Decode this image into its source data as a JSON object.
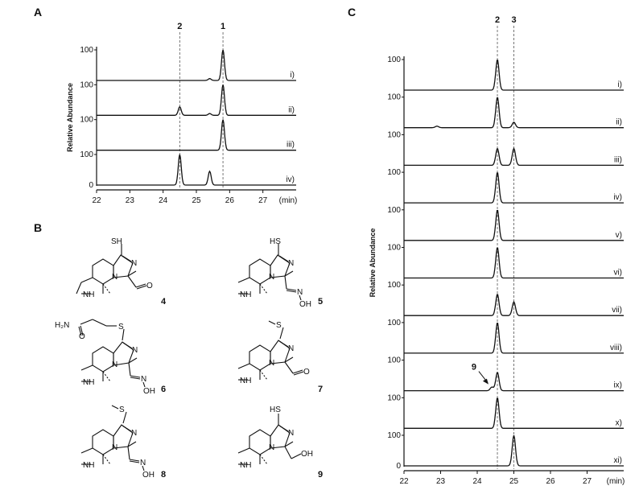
{
  "panels": {
    "a": "A",
    "b": "B",
    "c": "C"
  },
  "x_unit": "(min)",
  "chart_data": [
    {
      "panel": "A",
      "type": "line",
      "xlim": [
        22,
        28
      ],
      "x_ticks": [
        "22",
        "23",
        "24",
        "25",
        "26",
        "27"
      ],
      "ylabel": "Relative Abundance",
      "y_tick_top": "100",
      "y_tick_bottom": "0",
      "peak_markers": [
        {
          "label": "1",
          "x": 25.8
        },
        {
          "label": "2",
          "x": 24.5
        }
      ],
      "series": [
        {
          "label": "i)",
          "peaks": [
            {
              "x": 25.8,
              "height": 100
            },
            {
              "x": 25.4,
              "height": 6
            }
          ]
        },
        {
          "label": "ii)",
          "peaks": [
            {
              "x": 24.5,
              "height": 28
            },
            {
              "x": 25.4,
              "height": 6
            },
            {
              "x": 25.8,
              "height": 100
            }
          ]
        },
        {
          "label": "iii)",
          "peaks": [
            {
              "x": 25.8,
              "height": 100
            }
          ]
        },
        {
          "label": "iv)",
          "peaks": [
            {
              "x": 24.5,
              "height": 100
            },
            {
              "x": 25.4,
              "height": 45
            }
          ]
        }
      ]
    },
    {
      "panel": "C",
      "type": "line",
      "xlim": [
        22,
        28
      ],
      "x_ticks": [
        "22",
        "23",
        "24",
        "25",
        "26",
        "27"
      ],
      "ylabel": "Relative Abundance",
      "y_tick_top": "100",
      "y_tick_bottom": "0",
      "peak_markers": [
        {
          "label": "2",
          "x": 24.55
        },
        {
          "label": "3",
          "x": 25.0
        }
      ],
      "annotation": {
        "label": "9",
        "x": 24.35
      },
      "series": [
        {
          "label": "i)",
          "peaks": [
            {
              "x": 24.55,
              "height": 100
            }
          ]
        },
        {
          "label": "ii)",
          "peaks": [
            {
              "x": 24.55,
              "height": 100
            },
            {
              "x": 25.0,
              "height": 18
            },
            {
              "x": 22.9,
              "height": 5
            }
          ]
        },
        {
          "label": "iii)",
          "peaks": [
            {
              "x": 24.55,
              "height": 55
            },
            {
              "x": 25.0,
              "height": 55
            }
          ]
        },
        {
          "label": "iv)",
          "peaks": [
            {
              "x": 24.55,
              "height": 100
            }
          ]
        },
        {
          "label": "v)",
          "peaks": [
            {
              "x": 24.55,
              "height": 100
            }
          ]
        },
        {
          "label": "vi)",
          "peaks": [
            {
              "x": 24.55,
              "height": 100
            }
          ]
        },
        {
          "label": "vii)",
          "peaks": [
            {
              "x": 24.55,
              "height": 70
            },
            {
              "x": 25.0,
              "height": 45
            }
          ]
        },
        {
          "label": "viii)",
          "peaks": [
            {
              "x": 24.55,
              "height": 100
            }
          ]
        },
        {
          "label": "ix)",
          "peaks": [
            {
              "x": 24.4,
              "height": 12
            },
            {
              "x": 24.55,
              "height": 60
            }
          ]
        },
        {
          "label": "x)",
          "peaks": [
            {
              "x": 24.55,
              "height": 100
            }
          ]
        },
        {
          "label": "xi)",
          "peaks": [
            {
              "x": 25.0,
              "height": 100
            }
          ]
        }
      ]
    }
  ],
  "structures": [
    {
      "number": "4",
      "top_label": "SH",
      "atoms": [
        "N",
        "N",
        "NH",
        "O"
      ]
    },
    {
      "number": "5",
      "top_label": "HS",
      "atoms": [
        "N",
        "N",
        "NH",
        "N",
        "OH"
      ]
    },
    {
      "number": "6",
      "top_label": "S",
      "extra": "H₂N",
      "atoms": [
        "N",
        "N",
        "NH",
        "O",
        "N",
        "OH"
      ]
    },
    {
      "number": "7",
      "top_label": "S",
      "atoms": [
        "N",
        "N",
        "NH",
        "O"
      ]
    },
    {
      "number": "8",
      "top_label": "S",
      "atoms": [
        "N",
        "N",
        "NH",
        "N",
        "OH"
      ]
    },
    {
      "number": "9",
      "top_label": "HS",
      "atoms": [
        "N",
        "N",
        "NH",
        "OH"
      ]
    }
  ]
}
